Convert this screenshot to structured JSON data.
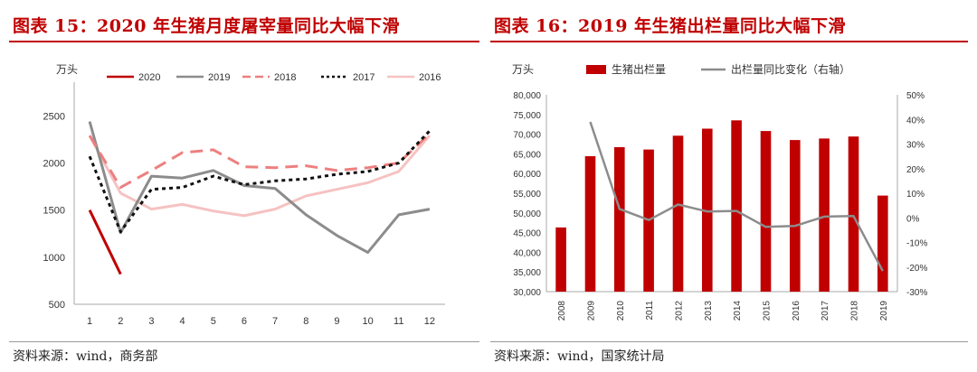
{
  "left": {
    "title": "图表 15：2020 年生猪月度屠宰量同比大幅下滑",
    "source": "资料来源：wind，商务部"
  },
  "right": {
    "title": "图表 16：2019 年生猪出栏量同比大幅下滑",
    "source": "资料来源：wind，国家统计局"
  },
  "chart_data": [
    {
      "type": "line",
      "ylabel": "万头",
      "ylim": [
        500,
        2800
      ],
      "yticks": [
        "2500",
        "2000",
        "1500",
        "1000",
        "500"
      ],
      "categories": [
        "1",
        "2",
        "3",
        "4",
        "5",
        "6",
        "7",
        "8",
        "9",
        "10",
        "11",
        "12"
      ],
      "legend_position": "top",
      "series": [
        {
          "name": "2020",
          "color": "#c00000",
          "dash": "solid",
          "values": [
            1500,
            820,
            null,
            null,
            null,
            null,
            null,
            null,
            null,
            null,
            null,
            null
          ]
        },
        {
          "name": "2019",
          "color": "#8c8c8c",
          "dash": "solid",
          "values": [
            2440,
            1260,
            1860,
            1840,
            1920,
            1760,
            1730,
            1450,
            1230,
            1050,
            1450,
            1510
          ]
        },
        {
          "name": "2018",
          "color": "#ee7f7f",
          "dash": "longdash",
          "values": [
            2290,
            1740,
            1920,
            2110,
            2140,
            1960,
            1950,
            1970,
            1920,
            1950,
            2000,
            2310
          ]
        },
        {
          "name": "2017",
          "color": "#111111",
          "dash": "dot",
          "values": [
            2070,
            1270,
            1720,
            1740,
            1860,
            1770,
            1810,
            1830,
            1880,
            1910,
            2000,
            2340
          ]
        },
        {
          "name": "2016",
          "color": "#f6c2c2",
          "dash": "solid",
          "values": [
            2290,
            1680,
            1510,
            1560,
            1490,
            1440,
            1510,
            1650,
            1720,
            1790,
            1910,
            2290
          ]
        }
      ]
    },
    {
      "type": "bar",
      "ylabel": "万头",
      "ylim": [
        30000,
        80000
      ],
      "yticks": [
        "80,000",
        "75,000",
        "70,000",
        "65,000",
        "60,000",
        "55,000",
        "50,000",
        "45,000",
        "40,000",
        "35,000",
        "30,000"
      ],
      "y2lim": [
        -30,
        50
      ],
      "y2ticks": [
        "50%",
        "40%",
        "30%",
        "20%",
        "10%",
        "0%",
        "-10%",
        "-20%",
        "-30%"
      ],
      "categories": [
        "2008",
        "2009",
        "2010",
        "2011",
        "2012",
        "2013",
        "2014",
        "2015",
        "2016",
        "2017",
        "2018",
        "2019"
      ],
      "legend_position": "top",
      "series": [
        {
          "name": "生猪出栏量",
          "type": "bar",
          "axis": "left",
          "color": "#c00000",
          "values": [
            46300,
            64400,
            66700,
            66100,
            69600,
            71400,
            73500,
            70800,
            68500,
            68900,
            69400,
            54400
          ]
        },
        {
          "name": "出栏量同比变化（右轴）",
          "type": "line",
          "axis": "right",
          "color": "#8c8c8c",
          "values": [
            null,
            39.0,
            3.6,
            -0.9,
            5.4,
            2.6,
            2.8,
            -3.7,
            -3.3,
            0.5,
            0.7,
            -21.6
          ]
        }
      ]
    }
  ]
}
